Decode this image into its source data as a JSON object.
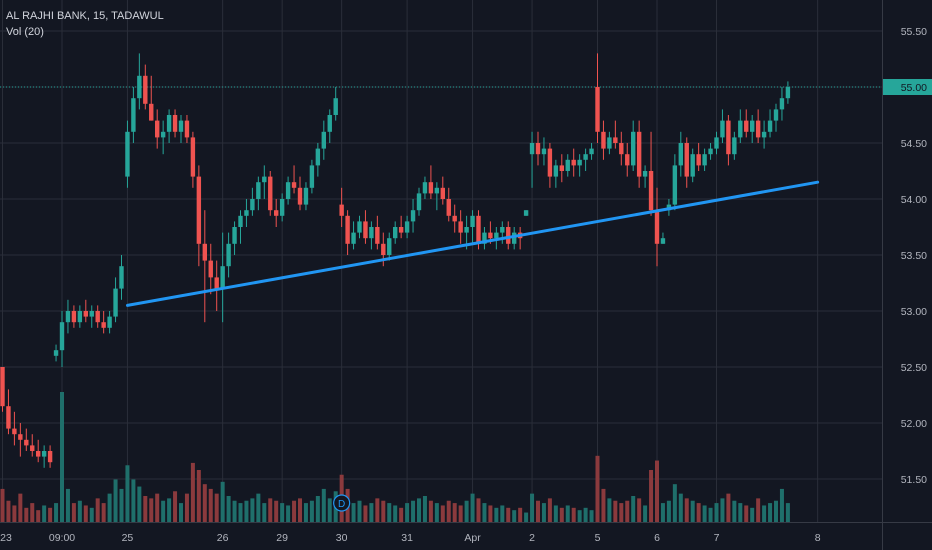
{
  "header": {
    "symbol_line": "AL RAJHI BANK, 15, TADAWUL",
    "indicator_label": "Vol (20)"
  },
  "colors": {
    "background": "#131722",
    "grid": "#2a2e39",
    "up": "#26a69a",
    "down": "#ef5350",
    "up_volume": "#1f6f6b",
    "down_volume": "#8b3a3d",
    "trendline": "#2196f3",
    "last_price_line": "#26a69a",
    "axis_text": "#b2b5be"
  },
  "dividend_marker": {
    "label": "D",
    "date": "30"
  },
  "last_price_tag": "55.00",
  "chart_data": {
    "type": "candlestick",
    "title": "",
    "timeframe": "15",
    "exchange": "TADAWUL",
    "ylim": [
      51.05,
      55.75
    ],
    "y_ticks": [
      "55.50",
      "55.00",
      "54.50",
      "54.00",
      "53.50",
      "53.00",
      "52.50",
      "52.00",
      "51.50"
    ],
    "x_ticks": [
      "23",
      "09:00",
      "25",
      "26",
      "29",
      "30",
      "31",
      "Apr",
      "2",
      "5",
      "6",
      "7",
      "8"
    ],
    "x_tick_bars": [
      0,
      10,
      21,
      37,
      47,
      57,
      68,
      79,
      89,
      100,
      110,
      120,
      137
    ],
    "last_price": 55.0,
    "trendline": {
      "from": {
        "bar": 21,
        "price": 53.05
      },
      "to": {
        "bar": 137,
        "price": 54.15
      }
    },
    "candles": [
      [
        52.5,
        52.5,
        52.1,
        52.15,
        14
      ],
      [
        52.15,
        52.3,
        51.9,
        51.95,
        9
      ],
      [
        51.95,
        52.1,
        51.8,
        51.9,
        7
      ],
      [
        51.9,
        52.0,
        51.7,
        51.85,
        12
      ],
      [
        51.85,
        51.95,
        51.75,
        51.8,
        6
      ],
      [
        51.8,
        51.9,
        51.7,
        51.75,
        8
      ],
      [
        51.75,
        51.85,
        51.65,
        51.7,
        5
      ],
      [
        51.7,
        51.8,
        51.6,
        51.75,
        7
      ],
      [
        51.75,
        51.8,
        51.6,
        51.65,
        6
      ],
      [
        52.6,
        52.7,
        52.55,
        52.65,
        8
      ],
      [
        52.65,
        53.0,
        52.5,
        52.9,
        55
      ],
      [
        52.9,
        53.1,
        52.8,
        53.0,
        14
      ],
      [
        53.0,
        53.05,
        52.85,
        52.9,
        8
      ],
      [
        52.9,
        53.05,
        52.85,
        53.0,
        9
      ],
      [
        53.0,
        53.1,
        52.9,
        52.95,
        7
      ],
      [
        52.95,
        53.05,
        52.85,
        53.0,
        6
      ],
      [
        53.0,
        53.05,
        52.85,
        52.9,
        10
      ],
      [
        52.9,
        53.0,
        52.8,
        52.85,
        8
      ],
      [
        52.85,
        53.0,
        52.8,
        52.95,
        12
      ],
      [
        52.95,
        53.3,
        52.9,
        53.2,
        18
      ],
      [
        53.2,
        53.5,
        53.1,
        53.4,
        14
      ],
      [
        54.2,
        54.7,
        54.1,
        54.6,
        24
      ],
      [
        54.6,
        55.0,
        54.5,
        54.9,
        18
      ],
      [
        54.9,
        55.3,
        54.8,
        55.1,
        15
      ],
      [
        55.1,
        55.2,
        54.8,
        54.85,
        11
      ],
      [
        54.85,
        55.1,
        54.7,
        54.7,
        10
      ],
      [
        54.7,
        54.8,
        54.45,
        54.55,
        12
      ],
      [
        54.55,
        54.7,
        54.4,
        54.6,
        9
      ],
      [
        54.6,
        54.8,
        54.5,
        54.75,
        10
      ],
      [
        54.75,
        54.8,
        54.55,
        54.6,
        13
      ],
      [
        54.6,
        54.75,
        54.5,
        54.7,
        8
      ],
      [
        54.7,
        54.75,
        54.5,
        54.55,
        12
      ],
      [
        54.55,
        54.6,
        54.1,
        54.2,
        25
      ],
      [
        54.2,
        54.3,
        53.4,
        53.6,
        22
      ],
      [
        53.6,
        53.9,
        52.9,
        53.45,
        16
      ],
      [
        53.45,
        53.6,
        53.15,
        53.3,
        14
      ],
      [
        53.3,
        53.45,
        53.0,
        53.2,
        12
      ],
      [
        53.2,
        53.7,
        52.9,
        53.4,
        17
      ],
      [
        53.4,
        53.7,
        53.3,
        53.6,
        11
      ],
      [
        53.6,
        53.8,
        53.5,
        53.75,
        9
      ],
      [
        53.75,
        53.9,
        53.6,
        53.85,
        8
      ],
      [
        53.85,
        54.0,
        53.75,
        53.9,
        9
      ],
      [
        53.9,
        54.1,
        53.85,
        54.0,
        10
      ],
      [
        54.0,
        54.2,
        53.9,
        54.15,
        12
      ],
      [
        54.15,
        54.3,
        54.0,
        54.2,
        8
      ],
      [
        54.2,
        54.25,
        53.85,
        53.9,
        10
      ],
      [
        53.9,
        54.0,
        53.75,
        53.85,
        9
      ],
      [
        53.85,
        54.05,
        53.8,
        54.0,
        8
      ],
      [
        54.0,
        54.2,
        53.95,
        54.15,
        7
      ],
      [
        54.15,
        54.3,
        54.05,
        54.1,
        9
      ],
      [
        54.1,
        54.2,
        53.9,
        53.95,
        10
      ],
      [
        53.95,
        54.15,
        53.9,
        54.1,
        8
      ],
      [
        54.1,
        54.35,
        54.05,
        54.3,
        9
      ],
      [
        54.3,
        54.5,
        54.2,
        54.45,
        11
      ],
      [
        54.45,
        54.7,
        54.35,
        54.6,
        14
      ],
      [
        54.6,
        54.8,
        54.5,
        54.75,
        10
      ],
      [
        54.75,
        55.0,
        54.7,
        54.9,
        13
      ],
      [
        53.95,
        54.1,
        53.75,
        53.85,
        20
      ],
      [
        53.85,
        53.9,
        53.5,
        53.6,
        14
      ],
      [
        53.6,
        53.8,
        53.55,
        53.7,
        8
      ],
      [
        53.7,
        53.85,
        53.65,
        53.8,
        9
      ],
      [
        53.8,
        53.9,
        53.6,
        53.65,
        7
      ],
      [
        53.65,
        53.8,
        53.55,
        53.75,
        8
      ],
      [
        53.75,
        53.85,
        53.55,
        53.6,
        10
      ],
      [
        53.6,
        53.7,
        53.4,
        53.5,
        9
      ],
      [
        53.5,
        53.7,
        53.45,
        53.65,
        8
      ],
      [
        53.65,
        53.8,
        53.6,
        53.75,
        7
      ],
      [
        53.75,
        53.85,
        53.65,
        53.7,
        6
      ],
      [
        53.7,
        53.85,
        53.65,
        53.8,
        8
      ],
      [
        53.8,
        54.0,
        53.7,
        53.9,
        9
      ],
      [
        53.9,
        54.1,
        53.85,
        54.05,
        10
      ],
      [
        54.05,
        54.2,
        54.0,
        54.15,
        11
      ],
      [
        54.15,
        54.3,
        54.0,
        54.05,
        9
      ],
      [
        54.05,
        54.15,
        53.9,
        54.1,
        8
      ],
      [
        54.1,
        54.2,
        53.95,
        54.0,
        7
      ],
      [
        54.0,
        54.1,
        53.8,
        53.85,
        9
      ],
      [
        53.85,
        53.95,
        53.7,
        53.8,
        8
      ],
      [
        53.8,
        53.9,
        53.6,
        53.7,
        7
      ],
      [
        53.7,
        53.85,
        53.55,
        53.75,
        9
      ],
      [
        53.75,
        53.9,
        53.6,
        53.85,
        12
      ],
      [
        53.85,
        53.9,
        53.55,
        53.6,
        10
      ],
      [
        53.6,
        53.75,
        53.55,
        53.7,
        8
      ],
      [
        53.7,
        53.8,
        53.6,
        53.65,
        7
      ],
      [
        53.65,
        53.75,
        53.55,
        53.7,
        6
      ],
      [
        53.7,
        53.8,
        53.6,
        53.75,
        7
      ],
      [
        53.75,
        53.8,
        53.55,
        53.6,
        6
      ],
      [
        53.6,
        53.75,
        53.55,
        53.7,
        5
      ],
      [
        53.7,
        53.75,
        53.55,
        53.65,
        6
      ],
      [
        53.85,
        53.9,
        53.85,
        53.9,
        4
      ],
      [
        54.4,
        54.6,
        54.1,
        54.5,
        12
      ],
      [
        54.5,
        54.6,
        54.3,
        54.4,
        9
      ],
      [
        54.4,
        54.55,
        54.3,
        54.45,
        8
      ],
      [
        54.45,
        54.5,
        54.1,
        54.2,
        10
      ],
      [
        54.2,
        54.35,
        54.1,
        54.3,
        7
      ],
      [
        54.3,
        54.4,
        54.15,
        54.25,
        6
      ],
      [
        54.25,
        54.4,
        54.2,
        54.35,
        7
      ],
      [
        54.35,
        54.45,
        54.2,
        54.3,
        6
      ],
      [
        54.3,
        54.4,
        54.2,
        54.35,
        5
      ],
      [
        54.35,
        54.45,
        54.25,
        54.4,
        6
      ],
      [
        54.4,
        54.5,
        54.35,
        54.45,
        5
      ],
      [
        55.0,
        55.3,
        54.5,
        54.6,
        28
      ],
      [
        54.6,
        54.7,
        54.35,
        54.45,
        14
      ],
      [
        54.45,
        54.6,
        54.4,
        54.55,
        10
      ],
      [
        54.55,
        54.7,
        54.45,
        54.5,
        9
      ],
      [
        54.5,
        54.6,
        54.3,
        54.4,
        8
      ],
      [
        54.4,
        54.5,
        54.2,
        54.3,
        9
      ],
      [
        54.3,
        54.7,
        54.25,
        54.6,
        11
      ],
      [
        54.6,
        54.7,
        54.1,
        54.2,
        10
      ],
      [
        54.2,
        54.3,
        54.1,
        54.25,
        7
      ],
      [
        54.25,
        54.6,
        53.85,
        53.9,
        22
      ],
      [
        53.9,
        54.1,
        53.4,
        53.6,
        26
      ],
      [
        53.6,
        53.7,
        53.6,
        53.65,
        8
      ],
      [
        53.9,
        54.0,
        53.85,
        53.95,
        9
      ],
      [
        53.95,
        54.4,
        53.9,
        54.3,
        16
      ],
      [
        54.3,
        54.6,
        54.2,
        54.5,
        12
      ],
      [
        54.5,
        54.55,
        54.1,
        54.2,
        10
      ],
      [
        54.2,
        54.45,
        54.15,
        54.4,
        9
      ],
      [
        54.4,
        54.5,
        54.25,
        54.3,
        8
      ],
      [
        54.3,
        54.45,
        54.25,
        54.4,
        7
      ],
      [
        54.4,
        54.5,
        54.35,
        54.45,
        6
      ],
      [
        54.45,
        54.6,
        54.4,
        54.55,
        8
      ],
      [
        54.55,
        54.8,
        54.5,
        54.7,
        10
      ],
      [
        54.7,
        54.75,
        54.3,
        54.4,
        12
      ],
      [
        54.4,
        54.6,
        54.35,
        54.55,
        9
      ],
      [
        54.55,
        54.8,
        54.5,
        54.7,
        8
      ],
      [
        54.7,
        54.8,
        54.55,
        54.6,
        7
      ],
      [
        54.6,
        54.75,
        54.5,
        54.7,
        6
      ],
      [
        54.7,
        54.8,
        54.5,
        54.55,
        10
      ],
      [
        54.55,
        54.7,
        54.45,
        54.6,
        7
      ],
      [
        54.6,
        54.8,
        54.55,
        54.7,
        8
      ],
      [
        54.7,
        54.85,
        54.6,
        54.8,
        9
      ],
      [
        54.8,
        55.0,
        54.7,
        54.9,
        14
      ],
      [
        54.9,
        55.05,
        54.85,
        55.0,
        8
      ]
    ]
  }
}
